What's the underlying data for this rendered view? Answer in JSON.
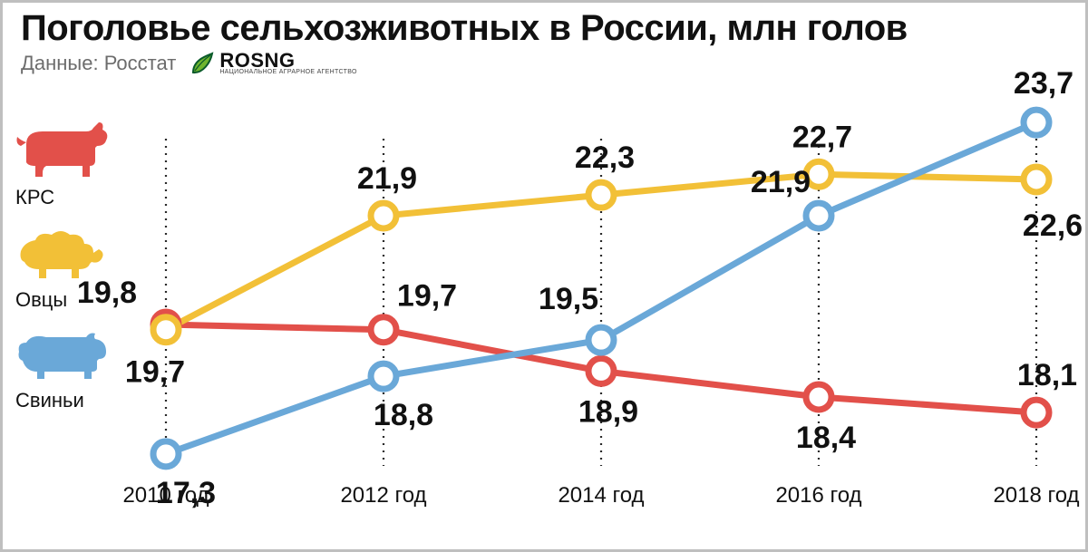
{
  "header": {
    "title": "Поголовье сельхозживотных в России, млн голов",
    "subtitle": "Данные: Росстат",
    "logo_text": "ROSNG",
    "logo_sub": "НАЦИОНАЛЬНОЕ АГРАРНОЕ АГЕНТСТВО",
    "logo_leaf_fill": "#6fb52e",
    "logo_leaf_stroke": "#0a5a2a"
  },
  "chart": {
    "type": "line",
    "categories": [
      "2010 год",
      "2012 год",
      "2014 год",
      "2016 год",
      "2018 год"
    ],
    "ylim": [
      17,
      24
    ],
    "background_color": "#ffffff",
    "grid_color": "#2a2a2a",
    "grid_dash": "2 6",
    "line_width": 7,
    "marker_style": "circle",
    "marker_radius": 14,
    "marker_stroke_width": 7,
    "marker_fill": "#ffffff",
    "xaxis_fontsize": 24,
    "value_fontsize": 34,
    "value_fontweight": 800,
    "series": [
      {
        "name": "КРС",
        "legend_label": "КРС",
        "legend_icon": "cow",
        "color": "#e2504a",
        "values": [
          19.8,
          19.7,
          18.9,
          18.4,
          18.1
        ],
        "display": [
          "19,8",
          "19,7",
          "18,9",
          "18,4",
          "18,1"
        ],
        "label_pos": [
          "above-left",
          "above",
          "below",
          "below",
          "above"
        ]
      },
      {
        "name": "Овцы",
        "legend_label": "Овцы",
        "legend_icon": "sheep",
        "color": "#f2c037",
        "values": [
          19.7,
          21.9,
          22.3,
          22.7,
          22.6
        ],
        "display": [
          "19,7",
          "21,9",
          "22,3",
          "22,7",
          "22,6"
        ],
        "label_pos": [
          "below",
          "above",
          "above",
          "above",
          "below"
        ]
      },
      {
        "name": "Свиньи",
        "legend_label": "Свиньи",
        "legend_icon": "pig",
        "color": "#6aa8d8",
        "values": [
          17.3,
          18.8,
          19.5,
          21.9,
          23.7
        ],
        "display": [
          "17,3",
          "18,8",
          "19,5",
          "21,9",
          "23,7"
        ],
        "label_pos": [
          "below",
          "below",
          "above",
          "above",
          "above"
        ]
      }
    ]
  }
}
